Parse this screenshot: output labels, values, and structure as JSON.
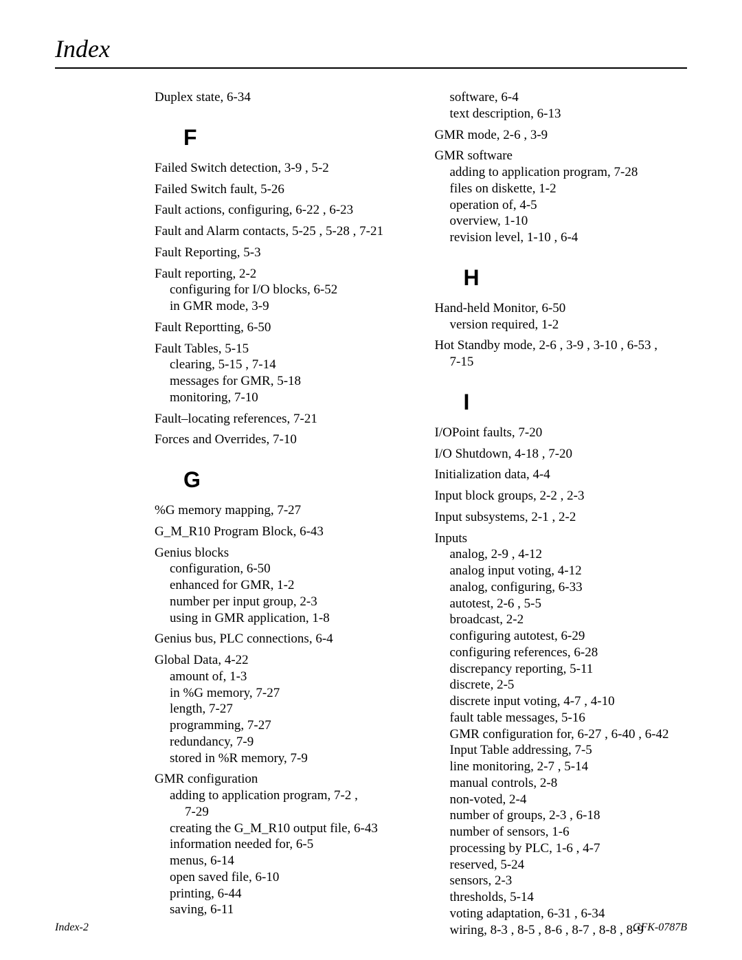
{
  "page": {
    "title": "Index",
    "footer_left": "Index-2",
    "footer_right": "GFK-0787B"
  },
  "left_col": [
    {
      "type": "entry",
      "text": "Duplex state, 6-34"
    },
    {
      "type": "letter",
      "text": "F"
    },
    {
      "type": "entry",
      "text": "Failed Switch detection, 3-9 , 5-2"
    },
    {
      "type": "entry",
      "text": "Failed Switch fault, 5-26"
    },
    {
      "type": "entry",
      "text": "Fault actions, configuring, 6-22 , 6-23"
    },
    {
      "type": "entry",
      "text": "Fault and Alarm contacts, 5-25 , 5-28 , 7-21"
    },
    {
      "type": "entry",
      "text": "Fault Reporting, 5-3"
    },
    {
      "type": "entry-nosp",
      "text": "Fault reporting, 2-2"
    },
    {
      "type": "sub",
      "text": "configuring for I/O blocks, 6-52"
    },
    {
      "type": "sub-last",
      "text": "in GMR mode, 3-9"
    },
    {
      "type": "entry",
      "text": "Fault Reportting, 6-50"
    },
    {
      "type": "entry-nosp",
      "text": "Fault Tables, 5-15"
    },
    {
      "type": "sub",
      "text": "clearing, 5-15 , 7-14"
    },
    {
      "type": "sub",
      "text": "messages for GMR, 5-18"
    },
    {
      "type": "sub-last",
      "text": "monitoring, 7-10"
    },
    {
      "type": "entry",
      "text": "Fault–locating references, 7-21"
    },
    {
      "type": "entry",
      "text": "Forces and Overrides, 7-10"
    },
    {
      "type": "letter",
      "text": "G"
    },
    {
      "type": "entry",
      "text": "%G memory mapping, 7-27"
    },
    {
      "type": "entry",
      "text": "G_M_R10 Program Block, 6-43"
    },
    {
      "type": "entry-nosp",
      "text": "Genius blocks"
    },
    {
      "type": "sub",
      "text": "configuration, 6-50"
    },
    {
      "type": "sub",
      "text": "enhanced for GMR, 1-2"
    },
    {
      "type": "sub",
      "text": "number per input group, 2-3"
    },
    {
      "type": "sub-last",
      "text": "using in GMR application, 1-8"
    },
    {
      "type": "entry",
      "text": "Genius bus, PLC connections, 6-4"
    },
    {
      "type": "entry-nosp",
      "text": "Global Data, 4-22"
    },
    {
      "type": "sub",
      "text": "amount of, 1-3"
    },
    {
      "type": "sub",
      "text": "in %G memory, 7-27"
    },
    {
      "type": "sub",
      "text": "length, 7-27"
    },
    {
      "type": "sub",
      "text": "programming, 7-27"
    },
    {
      "type": "sub",
      "text": "redundancy, 7-9"
    },
    {
      "type": "sub-last",
      "text": "stored in %R memory, 7-9"
    },
    {
      "type": "entry-nosp",
      "text": "GMR configuration"
    },
    {
      "type": "sub",
      "text": "adding to application program, 7-2 ,"
    },
    {
      "type": "sub-cont",
      "text": "7-29"
    },
    {
      "type": "sub",
      "text": "creating the G_M_R10 output file, 6-43"
    },
    {
      "type": "sub",
      "text": "information needed for, 6-5"
    },
    {
      "type": "sub",
      "text": "menus, 6-14"
    },
    {
      "type": "sub",
      "text": "open saved file, 6-10"
    },
    {
      "type": "sub",
      "text": "printing, 6-44"
    },
    {
      "type": "sub",
      "text": "saving, 6-11"
    }
  ],
  "right_col": [
    {
      "type": "sub",
      "text": "software, 6-4"
    },
    {
      "type": "sub-last",
      "text": "text description, 6-13"
    },
    {
      "type": "entry",
      "text": "GMR mode, 2-6 , 3-9"
    },
    {
      "type": "entry-nosp",
      "text": "GMR software"
    },
    {
      "type": "sub",
      "text": "adding to application program, 7-28"
    },
    {
      "type": "sub",
      "text": "files on diskette, 1-2"
    },
    {
      "type": "sub",
      "text": "operation of, 4-5"
    },
    {
      "type": "sub",
      "text": "overview, 1-10"
    },
    {
      "type": "sub-last",
      "text": "revision level, 1-10 , 6-4"
    },
    {
      "type": "letter",
      "text": "H"
    },
    {
      "type": "entry-nosp",
      "text": "Hand-held Monitor, 6-50"
    },
    {
      "type": "sub-last",
      "text": "version required, 1-2"
    },
    {
      "type": "entry-nosp",
      "text": "Hot Standby mode, 2-6 , 3-9 , 3-10 , 6-53 ,"
    },
    {
      "type": "sub-last",
      "text": "7-15"
    },
    {
      "type": "letter",
      "text": "I"
    },
    {
      "type": "entry",
      "text": "I/OPoint faults, 7-20"
    },
    {
      "type": "entry",
      "text": "I/O Shutdown, 4-18 , 7-20"
    },
    {
      "type": "entry",
      "text": "Initialization data, 4-4"
    },
    {
      "type": "entry",
      "text": "Input block groups, 2-2 , 2-3"
    },
    {
      "type": "entry",
      "text": "Input subsystems, 2-1 , 2-2"
    },
    {
      "type": "entry-nosp",
      "text": "Inputs"
    },
    {
      "type": "sub",
      "text": "analog, 2-9 , 4-12"
    },
    {
      "type": "sub",
      "text": "analog input voting, 4-12"
    },
    {
      "type": "sub",
      "text": "analog, configuring, 6-33"
    },
    {
      "type": "sub",
      "text": "autotest, 2-6 , 5-5"
    },
    {
      "type": "sub",
      "text": "broadcast, 2-2"
    },
    {
      "type": "sub",
      "text": "configuring autotest, 6-29"
    },
    {
      "type": "sub",
      "text": "configuring references, 6-28"
    },
    {
      "type": "sub",
      "text": "discrepancy reporting, 5-11"
    },
    {
      "type": "sub",
      "text": "discrete, 2-5"
    },
    {
      "type": "sub",
      "text": "discrete input voting, 4-7 , 4-10"
    },
    {
      "type": "sub",
      "text": "fault table messages, 5-16"
    },
    {
      "type": "sub",
      "text": "GMR configuration for, 6-27 , 6-40 , 6-42"
    },
    {
      "type": "sub",
      "text": "Input Table addressing, 7-5"
    },
    {
      "type": "sub",
      "text": "line monitoring, 2-7 , 5-14"
    },
    {
      "type": "sub",
      "text": "manual controls, 2-8"
    },
    {
      "type": "sub",
      "text": "non-voted, 2-4"
    },
    {
      "type": "sub",
      "text": "number of groups, 2-3 , 6-18"
    },
    {
      "type": "sub",
      "text": "number of sensors, 1-6"
    },
    {
      "type": "sub",
      "text": "processing by PLC, 1-6 , 4-7"
    },
    {
      "type": "sub",
      "text": "reserved, 5-24"
    },
    {
      "type": "sub",
      "text": "sensors, 2-3"
    },
    {
      "type": "sub",
      "text": "thresholds, 5-14"
    },
    {
      "type": "sub",
      "text": "voting adaptation, 6-31 , 6-34"
    },
    {
      "type": "sub",
      "text": "wiring, 8-3 , 8-5 , 8-6 , 8-7 , 8-8 , 8-9"
    }
  ]
}
